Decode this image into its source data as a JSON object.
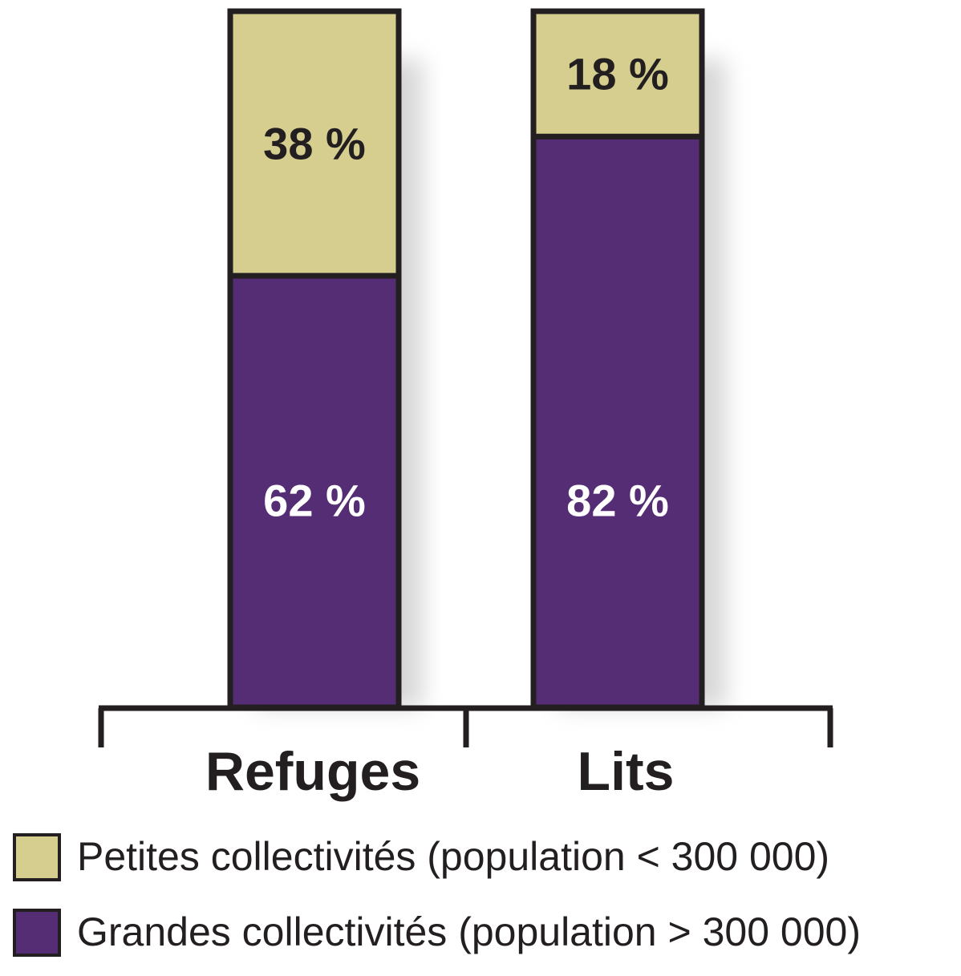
{
  "chart_data": {
    "type": "bar",
    "stacked": true,
    "unit": "%",
    "categories": [
      "Refuges",
      "Lits"
    ],
    "series": [
      {
        "name": "Grandes collectivités (population > 300 000)",
        "values": [
          62,
          82
        ],
        "labels": [
          "62 %",
          "82 %"
        ],
        "color": "#552d75",
        "label_color": "#ffffff"
      },
      {
        "name": "Petites collectivités (population < 300 000)",
        "values": [
          38,
          18
        ],
        "labels": [
          "38 %",
          "18 %"
        ],
        "color": "#d6ce8f",
        "label_color": "#231f20"
      }
    ],
    "legend_order": [
      1,
      0
    ],
    "legend_position": "bottom",
    "ylim": [
      0,
      100
    ],
    "grid": false
  },
  "colors": {
    "outline": "#231f20",
    "shadow": "#d7d7d7"
  }
}
